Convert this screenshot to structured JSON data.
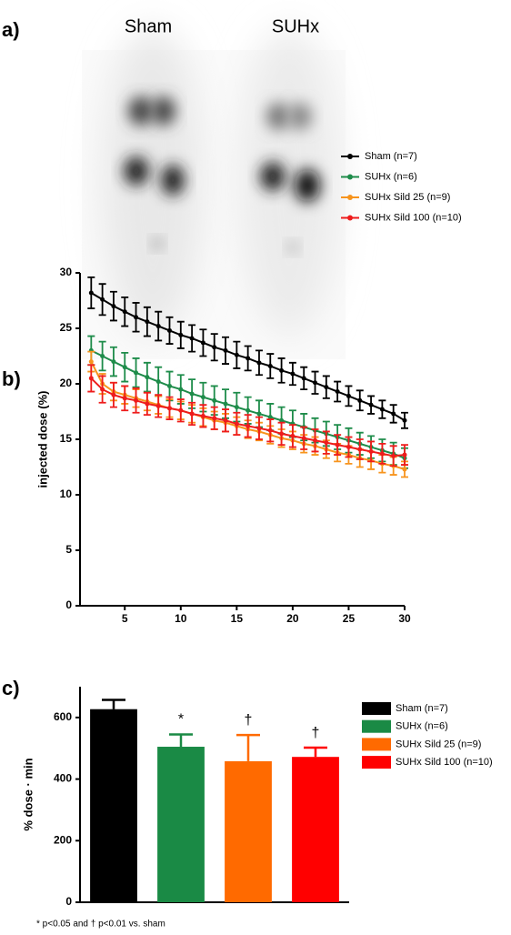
{
  "panel_a": {
    "label": "a)",
    "titles": [
      "Sham",
      "SUHx"
    ]
  },
  "chart_data": [
    {
      "type": "line",
      "panel_label": "b)",
      "y_label": "injected dose (%)",
      "x": [
        2,
        3,
        4,
        5,
        6,
        7,
        8,
        9,
        10,
        11,
        12,
        13,
        14,
        15,
        16,
        17,
        18,
        19,
        20,
        21,
        22,
        23,
        24,
        25,
        26,
        27,
        28,
        29,
        30
      ],
      "xlim": [
        1,
        30
      ],
      "xticks": [
        5,
        10,
        15,
        20,
        25,
        30
      ],
      "ylim": [
        0,
        30
      ],
      "yticks": [
        0,
        5,
        10,
        15,
        20,
        25,
        30
      ],
      "series": [
        {
          "name": "Sham (n=7)",
          "color": "#000000",
          "values": [
            28.2,
            27.6,
            27.0,
            26.5,
            26.0,
            25.6,
            25.2,
            24.8,
            24.4,
            24.1,
            23.7,
            23.3,
            23.0,
            22.6,
            22.3,
            21.9,
            21.6,
            21.2,
            20.9,
            20.5,
            20.1,
            19.7,
            19.3,
            18.9,
            18.5,
            18.1,
            17.7,
            17.3,
            16.7
          ],
          "errors": [
            1.4,
            1.4,
            1.3,
            1.3,
            1.3,
            1.3,
            1.3,
            1.2,
            1.2,
            1.2,
            1.2,
            1.2,
            1.2,
            1.2,
            1.1,
            1.1,
            1.1,
            1.1,
            1.0,
            1.0,
            1.0,
            1.0,
            0.9,
            0.9,
            0.9,
            0.8,
            0.8,
            0.8,
            0.7
          ]
        },
        {
          "name": "SUHx (n=6)",
          "color": "#1e8c4a",
          "values": [
            23.0,
            22.5,
            22.0,
            21.5,
            21.0,
            20.6,
            20.2,
            19.8,
            19.5,
            19.1,
            18.8,
            18.5,
            18.2,
            17.9,
            17.6,
            17.3,
            17.0,
            16.7,
            16.4,
            16.1,
            15.8,
            15.5,
            15.2,
            14.9,
            14.6,
            14.3,
            14.0,
            13.7,
            13.3
          ],
          "errors": [
            1.3,
            1.3,
            1.3,
            1.3,
            1.3,
            1.3,
            1.3,
            1.3,
            1.3,
            1.3,
            1.3,
            1.3,
            1.3,
            1.3,
            1.2,
            1.2,
            1.2,
            1.2,
            1.2,
            1.2,
            1.1,
            1.1,
            1.1,
            1.1,
            1.0,
            1.0,
            1.0,
            1.0,
            0.9
          ]
        },
        {
          "name": "SUHx Sild 25 (n=9)",
          "color": "#f7941d",
          "values": [
            22.0,
            20.0,
            19.3,
            19.0,
            18.7,
            18.4,
            18.1,
            17.8,
            17.6,
            17.3,
            17.0,
            16.7,
            16.5,
            16.2,
            15.9,
            15.7,
            15.4,
            15.1,
            14.9,
            14.6,
            14.4,
            14.1,
            13.8,
            13.6,
            13.3,
            13.1,
            12.8,
            12.6,
            12.3
          ],
          "errors": [
            0.9,
            0.9,
            0.8,
            0.8,
            0.8,
            0.8,
            0.8,
            0.8,
            0.8,
            0.8,
            0.8,
            0.8,
            0.8,
            0.8,
            0.8,
            0.8,
            0.8,
            0.8,
            0.8,
            0.8,
            0.8,
            0.8,
            0.8,
            0.8,
            0.8,
            0.8,
            0.8,
            0.8,
            0.7
          ]
        },
        {
          "name": "SUHx Sild 100 (n=10)",
          "color": "#ee1c1c",
          "values": [
            20.5,
            19.5,
            19.0,
            18.7,
            18.5,
            18.2,
            18.0,
            17.8,
            17.6,
            17.3,
            17.1,
            16.9,
            16.7,
            16.4,
            16.2,
            16.0,
            15.8,
            15.5,
            15.3,
            15.1,
            14.9,
            14.7,
            14.5,
            14.3,
            14.1,
            13.9,
            13.7,
            13.5,
            13.6
          ],
          "errors": [
            1.2,
            1.2,
            1.1,
            1.1,
            1.1,
            1.0,
            1.0,
            1.0,
            1.0,
            1.0,
            1.0,
            1.0,
            1.0,
            1.0,
            1.0,
            1.0,
            1.0,
            1.0,
            1.0,
            1.0,
            1.0,
            1.0,
            0.9,
            0.9,
            0.9,
            0.9,
            0.9,
            0.9,
            0.9
          ]
        }
      ]
    },
    {
      "type": "bar",
      "panel_label": "c)",
      "y_label": "% dose · min",
      "categories": [
        "Sham (n=7)",
        "SUHx (n=6)",
        "SUHx Sild 25 (n=9)",
        "SUHx Sild 100 (n=10)"
      ],
      "values": [
        627,
        505,
        458,
        472
      ],
      "errors": [
        30,
        40,
        85,
        30
      ],
      "colors": [
        "#000000",
        "#1a8a45",
        "#ff6a00",
        "#ff0000"
      ],
      "ylim": [
        0,
        700
      ],
      "yticks": [
        0,
        200,
        400,
        600
      ],
      "annotations": [
        {
          "text": "*",
          "category": "SUHx (n=6)"
        },
        {
          "text": "†",
          "category": "SUHx Sild 25 (n=9)"
        },
        {
          "text": "†",
          "category": "SUHx Sild 100 (n=10)"
        }
      ],
      "footnote": "* p<0.05 and † p<0.01 vs. sham"
    }
  ]
}
